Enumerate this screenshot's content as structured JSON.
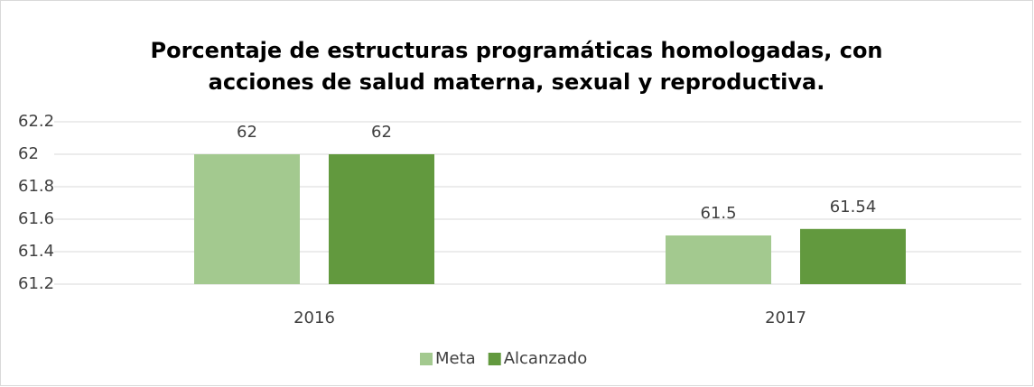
{
  "chart_data": {
    "type": "bar",
    "title": [
      "Porcentaje de estructuras programáticas homologadas, con",
      "acciones de salud materna, sexual y reproductiva."
    ],
    "categories": [
      "2016",
      "2017"
    ],
    "series": [
      {
        "name": "Meta",
        "color": "#a3c98f",
        "values": [
          62,
          61.5
        ]
      },
      {
        "name": "Alcanzado",
        "color": "#62993e",
        "values": [
          62,
          61.54
        ]
      }
    ],
    "ylim": [
      61.2,
      62.2
    ],
    "yticks": [
      61.2,
      61.4,
      61.6,
      61.8,
      62,
      62.2
    ],
    "grid": true,
    "legend": "bottom"
  }
}
